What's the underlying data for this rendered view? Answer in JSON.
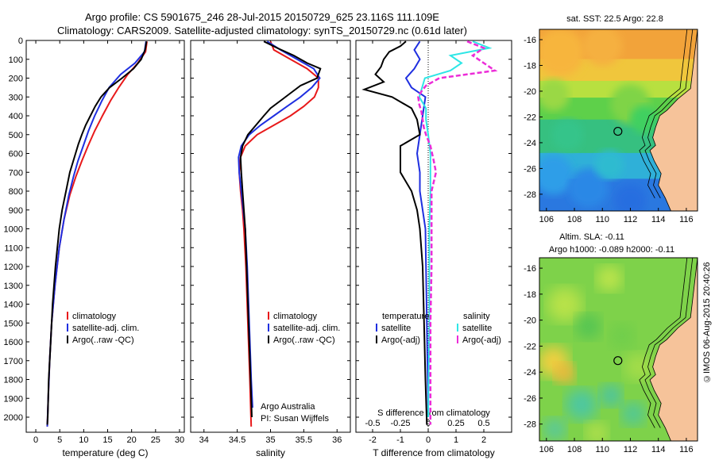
{
  "title_line1": "Argo profile: CS 5901675_246 28-Jul-2015 20150729_625 23.116S 111.109E",
  "title_line2": "Climatology: CARS2009. Satellite-adjusted climatology: synTS_20150729.nc (0.61d later)",
  "sidebar_stamp": "©IMOS 06-Aug-2015 20:40:26",
  "colors": {
    "climatology": "#e8191a",
    "satellite": "#1f2fe0",
    "argo": "#000000",
    "sat_salinity": "#2ee6e6",
    "argo_salinity_diff": "#ec2cd8"
  },
  "chart_data": [
    {
      "type": "line",
      "name": "temperature-profile",
      "xlabel": "temperature (deg C)",
      "xlim": [
        -2,
        31
      ],
      "xticks": [
        0,
        5,
        10,
        15,
        20,
        25,
        30
      ],
      "ylim": [
        0,
        2080
      ],
      "yticks": [
        0,
        100,
        200,
        300,
        400,
        500,
        600,
        700,
        800,
        900,
        1000,
        1100,
        1200,
        1300,
        1400,
        1500,
        1600,
        1700,
        1800,
        1900,
        2000
      ],
      "legend": [
        "climatology",
        "satellite-adj. clim.",
        "Argo(..raw -QC)"
      ],
      "series": [
        {
          "name": "climatology",
          "depth": [
            5,
            60,
            120,
            180,
            250,
            320,
            400,
            480,
            560,
            640,
            720,
            820,
            950,
            1100,
            1300,
            1500,
            1700,
            1900,
            2050
          ],
          "values": [
            23.2,
            22.9,
            21.3,
            19.2,
            17.3,
            15.6,
            13.9,
            12.3,
            10.9,
            9.6,
            8.4,
            7.1,
            5.9,
            4.9,
            4.0,
            3.3,
            2.9,
            2.6,
            2.4
          ]
        },
        {
          "name": "satellite",
          "depth": [
            5,
            60,
            120,
            180,
            250,
            320,
            400,
            480,
            560,
            640,
            720,
            820,
            950,
            1100,
            1300,
            1500,
            1700,
            1900,
            2050
          ],
          "values": [
            23.0,
            22.7,
            20.7,
            17.7,
            15.3,
            13.8,
            12.3,
            11.0,
            9.9,
            8.8,
            7.9,
            6.9,
            5.9,
            4.9,
            4.0,
            3.3,
            2.9,
            2.6,
            2.4
          ]
        },
        {
          "name": "argo",
          "depth": [
            5,
            50,
            100,
            150,
            200,
            250,
            300,
            350,
            400,
            450,
            500,
            550,
            600,
            650,
            700,
            800,
            900,
            1000,
            1200,
            1400,
            1600,
            1800,
            2000,
            2040
          ],
          "values": [
            23.1,
            22.8,
            22.0,
            20.4,
            18.0,
            15.4,
            13.6,
            12.4,
            11.4,
            10.4,
            9.6,
            8.9,
            8.3,
            7.7,
            7.1,
            6.3,
            5.5,
            4.9,
            4.1,
            3.5,
            3.1,
            2.7,
            2.5,
            2.4
          ]
        }
      ]
    },
    {
      "type": "line",
      "name": "salinity-profile",
      "xlabel": "salinity",
      "xlim": [
        33.8,
        36.2
      ],
      "xticks": [
        34,
        34.5,
        35,
        35.5,
        36
      ],
      "xticklabels": [
        "34",
        "34.5",
        "35",
        "35.5",
        "36"
      ],
      "ylim": [
        0,
        2080
      ],
      "legend": [
        "climatology",
        "satellite-adj. clim.",
        "Argo(..raw -QC)"
      ],
      "annotation": [
        "Argo Australia",
        "PI: Susan Wijffels"
      ],
      "series": [
        {
          "name": "climatology",
          "depth": [
            5,
            50,
            100,
            150,
            200,
            250,
            300,
            350,
            400,
            450,
            500,
            560,
            620,
            700,
            800,
            900,
            1000,
            1200,
            1500,
            1800,
            2050
          ],
          "values": [
            35.0,
            35.05,
            35.3,
            35.55,
            35.72,
            35.72,
            35.66,
            35.5,
            35.3,
            35.05,
            34.8,
            34.62,
            34.55,
            34.53,
            34.55,
            34.58,
            34.6,
            34.63,
            34.66,
            34.69,
            34.71
          ]
        },
        {
          "name": "satellite",
          "depth": [
            5,
            50,
            100,
            150,
            200,
            250,
            300,
            350,
            400,
            450,
            500,
            560,
            620,
            700,
            800,
            900,
            1000,
            1200,
            1500,
            1800,
            1950
          ],
          "values": [
            34.95,
            35.15,
            35.4,
            35.65,
            35.74,
            35.62,
            35.45,
            35.25,
            35.05,
            34.85,
            34.68,
            34.56,
            34.52,
            34.53,
            34.56,
            34.59,
            34.62,
            34.65,
            34.68,
            34.71,
            34.73
          ]
        },
        {
          "name": "argo",
          "depth": [
            5,
            40,
            80,
            120,
            150,
            200,
            240,
            280,
            320,
            360,
            400,
            450,
            500,
            560,
            620,
            700,
            800,
            900,
            1000,
            1200,
            1500,
            1800,
            2000
          ],
          "values": [
            34.9,
            35.1,
            35.35,
            35.55,
            35.75,
            35.7,
            35.45,
            35.3,
            35.15,
            35.0,
            34.9,
            34.78,
            34.66,
            34.58,
            34.55,
            34.56,
            34.58,
            34.6,
            34.62,
            34.64,
            34.67,
            34.7,
            34.72
          ]
        }
      ]
    },
    {
      "type": "line",
      "name": "difference-profile",
      "xlabel_T": "T difference from climatology",
      "xlabel_S": "S difference from climatology",
      "xlim_T": [
        -2.6,
        3.0
      ],
      "xticks_T": [
        -2,
        -1,
        0,
        1,
        2
      ],
      "xticks_S": [
        -0.5,
        -0.25,
        0,
        0.25,
        0.5
      ],
      "xticklabels_S": [
        "-0.5",
        "-0.25",
        "0",
        "0.25",
        "0.5"
      ],
      "ylim": [
        0,
        2080
      ],
      "legend_temperature": {
        "heading": "temperature",
        "items": [
          "satellite",
          "Argo(-adj)"
        ]
      },
      "legend_salinity": {
        "heading": "salinity",
        "items": [
          "satellite",
          "Argo(-adj)"
        ]
      },
      "series": [
        {
          "name": "T satellite",
          "depth": [
            5,
            50,
            100,
            150,
            200,
            250,
            300,
            400,
            500,
            600,
            700,
            800,
            1000,
            1500,
            2000
          ],
          "values": [
            -0.3,
            -0.5,
            -0.3,
            -0.5,
            -0.8,
            -0.6,
            -0.1,
            -0.2,
            -0.3,
            -0.4,
            -0.3,
            -0.3,
            -0.1,
            -0.05,
            0
          ]
        },
        {
          "name": "T argo",
          "depth": [
            5,
            30,
            60,
            100,
            140,
            180,
            220,
            260,
            300,
            360,
            420,
            500,
            560,
            600,
            700,
            800,
            900,
            1000,
            1200,
            1500,
            1800,
            2040
          ],
          "values": [
            -0.8,
            -1.0,
            -1.4,
            -1.6,
            -1.7,
            -1.9,
            -1.6,
            -2.3,
            -1.3,
            -0.6,
            -0.4,
            -0.3,
            -1.0,
            -1.0,
            -1.0,
            -0.6,
            -0.4,
            -0.3,
            -0.2,
            -0.15,
            -0.1,
            -0.05
          ]
        },
        {
          "name": "S satellite",
          "depth": [
            5,
            40,
            80,
            120,
            160,
            200,
            240,
            300,
            360,
            420,
            500,
            600,
            700,
            800,
            1000,
            1500,
            2000
          ],
          "values": [
            0.4,
            0.55,
            0.2,
            0.3,
            0.2,
            -0.03,
            -0.05,
            -0.08,
            -0.02,
            -0.02,
            0.0,
            0.02,
            0.02,
            0.02,
            0.01,
            0.01,
            0.0
          ]
        },
        {
          "name": "S argo",
          "depth": [
            5,
            40,
            80,
            120,
            160,
            200,
            240,
            270,
            300,
            340,
            380,
            420,
            460,
            500,
            560,
            640,
            700,
            800,
            900,
            1000,
            1200,
            1500,
            1800,
            2040
          ],
          "values": [
            0.35,
            0.5,
            0.4,
            0.5,
            0.6,
            0.1,
            -0.02,
            -0.06,
            -0.09,
            -0.08,
            -0.06,
            -0.05,
            -0.04,
            -0.02,
            0.02,
            0.05,
            0.07,
            0.03,
            0.03,
            0.03,
            0.03,
            0.02,
            0.02,
            0.02
          ]
        }
      ]
    },
    {
      "type": "heatmap",
      "name": "sst-map",
      "title": "sat. SST: 22.5 Argo: 22.8",
      "xticks": [
        106,
        108,
        110,
        112,
        114,
        116
      ],
      "yticks": [
        -16,
        -18,
        -20,
        -22,
        -24,
        -26,
        -28
      ],
      "xlim": [
        105.5,
        116.8
      ],
      "ylim": [
        -29.3,
        -15.2
      ],
      "float_position": [
        111.109,
        -23.116
      ]
    },
    {
      "type": "heatmap",
      "name": "sla-map",
      "title_line1": "Altim. SLA: -0.11",
      "title_line2": "Argo h1000: -0.089 h2000: -0.11",
      "xticks": [
        106,
        108,
        110,
        112,
        114,
        116
      ],
      "yticks": [
        -16,
        -18,
        -20,
        -22,
        -24,
        -26,
        -28
      ],
      "xlim": [
        105.5,
        116.8
      ],
      "ylim": [
        -29.3,
        -15.2
      ],
      "float_position": [
        111.109,
        -23.116
      ]
    }
  ]
}
